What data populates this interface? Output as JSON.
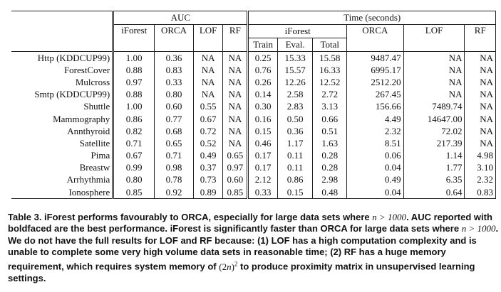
{
  "table": {
    "auc_group": "AUC",
    "time_group": "Time (seconds)",
    "auc_cols": [
      "iForest",
      "ORCA",
      "LOF",
      "RF"
    ],
    "iforest_group": "iForest",
    "iforest_subcols": [
      "Train",
      "Eval.",
      "Total"
    ],
    "time_cols": [
      "ORCA",
      "LOF",
      "RF"
    ],
    "rows": [
      {
        "name": "Http (KDDCUP99)",
        "auc": [
          "1.00",
          "0.36",
          "NA",
          "NA"
        ],
        "auc_bold": 0,
        "time": [
          "0.25",
          "15.33",
          "15.58",
          "9487.47",
          "NA",
          "NA"
        ],
        "time_bold": 2
      },
      {
        "name": "ForestCover",
        "auc": [
          "0.88",
          "0.83",
          "NA",
          "NA"
        ],
        "auc_bold": 0,
        "time": [
          "0.76",
          "15.57",
          "16.33",
          "6995.17",
          "NA",
          "NA"
        ],
        "time_bold": 2
      },
      {
        "name": "Mulcross",
        "auc": [
          "0.97",
          "0.33",
          "NA",
          "NA"
        ],
        "auc_bold": 0,
        "time": [
          "0.26",
          "12.26",
          "12.52",
          "2512.20",
          "NA",
          "NA"
        ],
        "time_bold": 2
      },
      {
        "name": "Smtp (KDDCUP99)",
        "auc": [
          "0.88",
          "0.80",
          "NA",
          "NA"
        ],
        "auc_bold": 0,
        "time": [
          "0.14",
          "2.58",
          "2.72",
          "267.45",
          "NA",
          "NA"
        ],
        "time_bold": 2
      },
      {
        "name": "Shuttle",
        "auc": [
          "1.00",
          "0.60",
          "0.55",
          "NA"
        ],
        "auc_bold": 0,
        "time": [
          "0.30",
          "2.83",
          "3.13",
          "156.66",
          "7489.74",
          "NA"
        ],
        "time_bold": 2
      },
      {
        "name": "Mammography",
        "auc": [
          "0.86",
          "0.77",
          "0.67",
          "NA"
        ],
        "auc_bold": 0,
        "time": [
          "0.16",
          "0.50",
          "0.66",
          "4.49",
          "14647.00",
          "NA"
        ],
        "time_bold": 2
      },
      {
        "name": "Annthyroid",
        "auc": [
          "0.82",
          "0.68",
          "0.72",
          "NA"
        ],
        "auc_bold": 0,
        "time": [
          "0.15",
          "0.36",
          "0.51",
          "2.32",
          "72.02",
          "NA"
        ],
        "time_bold": 2
      },
      {
        "name": "Satellite",
        "auc": [
          "0.71",
          "0.65",
          "0.52",
          "NA"
        ],
        "auc_bold": 0,
        "time": [
          "0.46",
          "1.17",
          "1.63",
          "8.51",
          "217.39",
          "NA"
        ],
        "time_bold": 2
      },
      {
        "name": "Pima",
        "auc": [
          "0.67",
          "0.71",
          "0.49",
          "0.65"
        ],
        "auc_bold": 1,
        "time": [
          "0.17",
          "0.11",
          "0.28",
          "0.06",
          "1.14",
          "4.98"
        ],
        "time_bold": 3
      },
      {
        "name": "Breastw",
        "auc": [
          "0.99",
          "0.98",
          "0.37",
          "0.97"
        ],
        "auc_bold": 0,
        "time": [
          "0.17",
          "0.11",
          "0.28",
          "0.04",
          "1.77",
          "3.10"
        ],
        "time_bold": 3
      },
      {
        "name": "Arrhythmia",
        "auc": [
          "0.80",
          "0.78",
          "0.73",
          "0.60"
        ],
        "auc_bold": 0,
        "time": [
          "2.12",
          "0.86",
          "2.98",
          "0.49",
          "6.35",
          "2.32"
        ],
        "time_bold": 3
      },
      {
        "name": "Ionosphere",
        "auc": [
          "0.85",
          "0.92",
          "0.89",
          "0.85"
        ],
        "auc_bold": 1,
        "time": [
          "0.33",
          "0.15",
          "0.48",
          "0.04",
          "0.64",
          "0.83"
        ],
        "time_bold": 3
      }
    ]
  },
  "caption": {
    "p1": "Table 3. iForest performs favourably to ORCA, especially for large data sets where",
    "m1": "n > 1000",
    "p2": ". AUC reported with boldfaced are the best performance. iForest is significantly faster than ORCA for large data sets where",
    "m2": "n > 1000",
    "p3": ". We do not have the full results for LOF and RF because: (1) LOF has a high computation complexity and is unable to complete some very high volume data sets in reasonable time; (2) RF has a huge memory requirement, which requires system memory of",
    "m3_open": "(2",
    "m3_var": "n",
    "m3_close": ")",
    "m3_exp": "2",
    "p4": "to produce proximity matrix in unsupervised learning settings."
  }
}
